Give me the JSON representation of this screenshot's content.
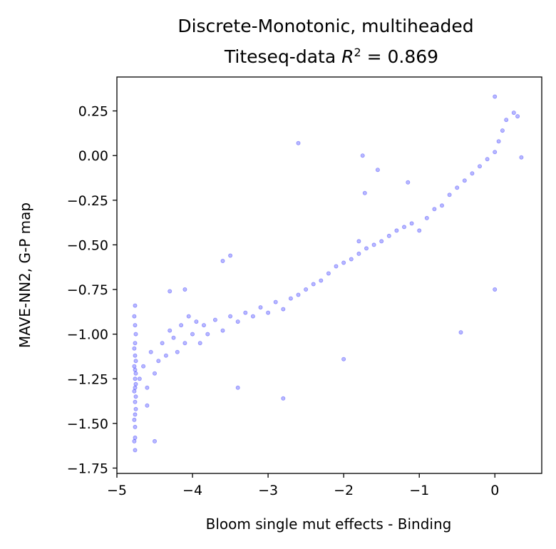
{
  "chart_data": {
    "type": "scatter",
    "title_line1": "Discrete-Monotonic, multiheaded",
    "title_line2_prefix": "Titeseq-data ",
    "title_line2_r2": "R",
    "title_line2_sup": "2",
    "title_line2_suffix": " = 0.869",
    "xlabel": "Bloom single mut effects - Binding",
    "ylabel": "MAVE-NN2, G-P map",
    "xlim": [
      -5.0,
      0.62
    ],
    "ylim": [
      -1.78,
      0.44
    ],
    "xticks": [
      -5,
      -4,
      -3,
      -2,
      -1,
      0
    ],
    "xtick_labels": [
      "−5",
      "−4",
      "−3",
      "−2",
      "−1",
      "0"
    ],
    "yticks": [
      0.25,
      0.0,
      -0.25,
      -0.5,
      -0.75,
      -1.0,
      -1.25,
      -1.5,
      -1.75
    ],
    "ytick_labels": [
      "0.25",
      "0.00",
      "−0.25",
      "−0.50",
      "−0.75",
      "−1.00",
      "−1.25",
      "−1.50",
      "−1.75"
    ],
    "marker_color": "#0000ff",
    "grid": false,
    "legend": "none",
    "series": [
      {
        "points": [
          [
            -4.76,
            -0.84
          ],
          [
            -4.76,
            -0.95
          ],
          [
            -4.76,
            -1.05
          ],
          [
            -4.76,
            -1.12
          ],
          [
            -4.76,
            -1.2
          ],
          [
            -4.76,
            -1.25
          ],
          [
            -4.76,
            -1.3
          ],
          [
            -4.76,
            -1.38
          ],
          [
            -4.76,
            -1.45
          ],
          [
            -4.76,
            -1.52
          ],
          [
            -4.76,
            -1.58
          ],
          [
            -4.76,
            -1.65
          ],
          [
            -4.75,
            -1.0
          ],
          [
            -4.75,
            -1.15
          ],
          [
            -4.75,
            -1.22
          ],
          [
            -4.75,
            -1.28
          ],
          [
            -4.75,
            -1.35
          ],
          [
            -4.75,
            -1.42
          ],
          [
            -4.77,
            -0.9
          ],
          [
            -4.77,
            -1.08
          ],
          [
            -4.77,
            -1.18
          ],
          [
            -4.77,
            -1.32
          ],
          [
            -4.77,
            -1.48
          ],
          [
            -4.77,
            -1.6
          ],
          [
            -4.7,
            -1.25
          ],
          [
            -4.65,
            -1.18
          ],
          [
            -4.6,
            -1.3
          ],
          [
            -4.55,
            -1.1
          ],
          [
            -4.5,
            -1.22
          ],
          [
            -4.45,
            -1.15
          ],
          [
            -4.4,
            -1.05
          ],
          [
            -4.35,
            -1.12
          ],
          [
            -4.3,
            -0.98
          ],
          [
            -4.25,
            -1.02
          ],
          [
            -4.2,
            -1.1
          ],
          [
            -4.15,
            -0.95
          ],
          [
            -4.1,
            -1.05
          ],
          [
            -4.05,
            -0.9
          ],
          [
            -4.0,
            -1.0
          ],
          [
            -3.95,
            -0.93
          ],
          [
            -3.9,
            -1.05
          ],
          [
            -3.85,
            -0.95
          ],
          [
            -3.8,
            -1.0
          ],
          [
            -3.7,
            -0.92
          ],
          [
            -3.6,
            -0.98
          ],
          [
            -3.5,
            -0.9
          ],
          [
            -3.4,
            -0.93
          ],
          [
            -3.3,
            -0.88
          ],
          [
            -3.2,
            -0.9
          ],
          [
            -3.1,
            -0.85
          ],
          [
            -3.0,
            -0.88
          ],
          [
            -2.9,
            -0.82
          ],
          [
            -2.8,
            -0.86
          ],
          [
            -2.7,
            -0.8
          ],
          [
            -2.6,
            -0.78
          ],
          [
            -2.5,
            -0.75
          ],
          [
            -2.4,
            -0.72
          ],
          [
            -2.3,
            -0.7
          ],
          [
            -2.2,
            -0.66
          ],
          [
            -2.1,
            -0.62
          ],
          [
            -2.0,
            -0.6
          ],
          [
            -1.9,
            -0.58
          ],
          [
            -1.8,
            -0.55
          ],
          [
            -1.7,
            -0.52
          ],
          [
            -1.6,
            -0.5
          ],
          [
            -1.5,
            -0.48
          ],
          [
            -1.4,
            -0.45
          ],
          [
            -1.3,
            -0.42
          ],
          [
            -1.2,
            -0.4
          ],
          [
            -1.1,
            -0.38
          ],
          [
            -1.0,
            -0.42
          ],
          [
            -0.9,
            -0.35
          ],
          [
            -0.8,
            -0.3
          ],
          [
            -0.7,
            -0.28
          ],
          [
            -0.6,
            -0.22
          ],
          [
            -0.5,
            -0.18
          ],
          [
            -0.4,
            -0.14
          ],
          [
            -0.3,
            -0.1
          ],
          [
            -0.2,
            -0.06
          ],
          [
            -0.1,
            -0.02
          ],
          [
            0.0,
            0.02
          ],
          [
            0.05,
            0.08
          ],
          [
            0.1,
            0.14
          ],
          [
            0.15,
            0.2
          ],
          [
            -4.6,
            -1.4
          ],
          [
            -4.5,
            -1.6
          ],
          [
            -4.3,
            -0.76
          ],
          [
            -4.1,
            -0.75
          ],
          [
            -3.6,
            -0.59
          ],
          [
            -3.5,
            -0.56
          ],
          [
            -3.4,
            -1.3
          ],
          [
            -2.8,
            -1.36
          ],
          [
            -2.6,
            0.07
          ],
          [
            -2.0,
            -1.14
          ],
          [
            -1.8,
            -0.48
          ],
          [
            -1.75,
            0.0
          ],
          [
            -1.72,
            -0.21
          ],
          [
            -1.55,
            -0.08
          ],
          [
            -1.15,
            -0.15
          ],
          [
            -0.45,
            -0.99
          ],
          [
            0.0,
            -0.75
          ],
          [
            0.0,
            0.33
          ],
          [
            0.35,
            -0.01
          ],
          [
            0.25,
            0.24
          ],
          [
            0.3,
            0.22
          ]
        ]
      }
    ]
  }
}
